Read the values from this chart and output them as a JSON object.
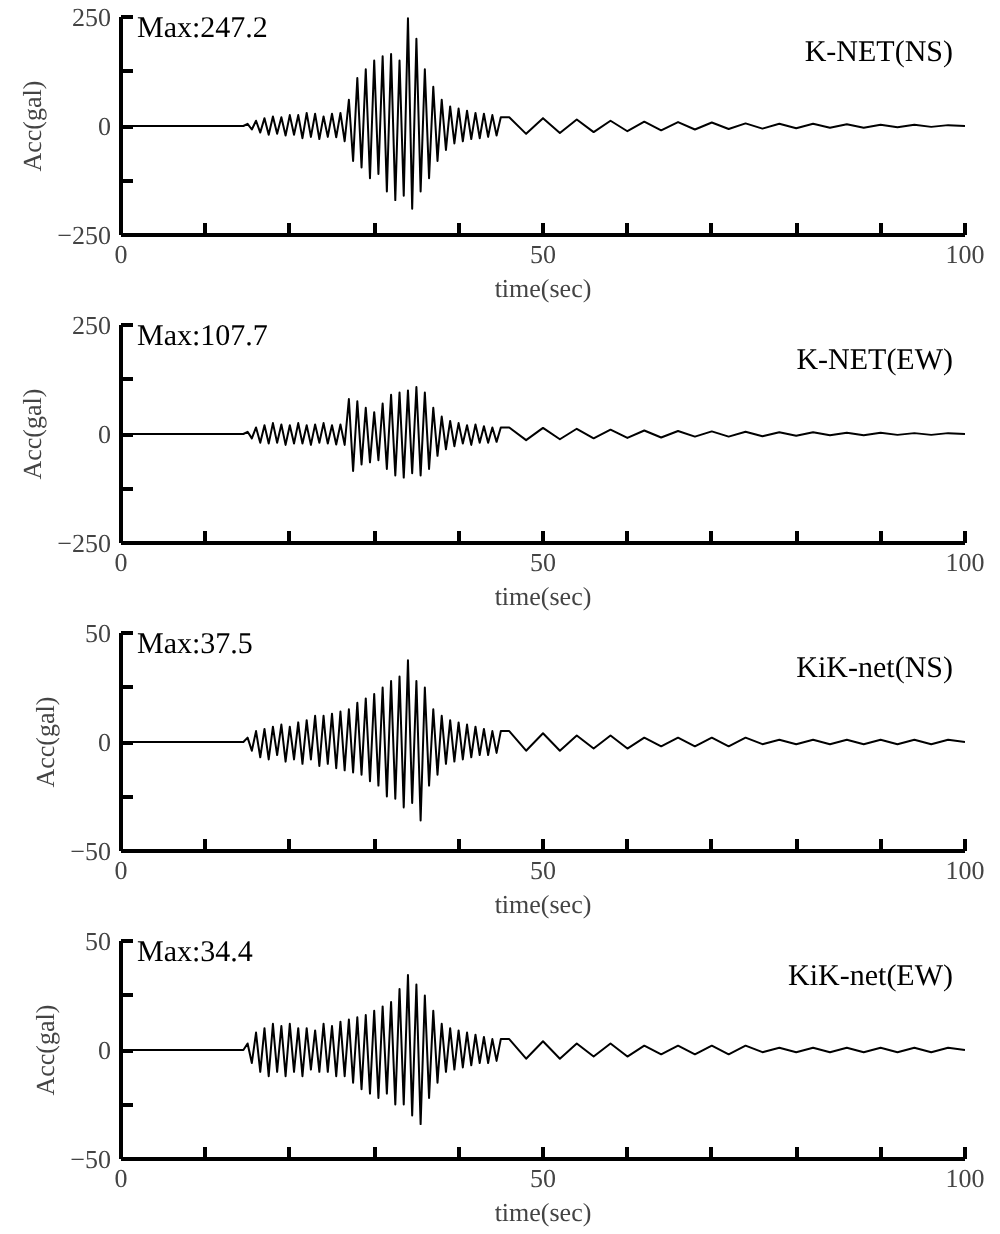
{
  "chart_data": [
    {
      "type": "line",
      "xlabel": "time(sec)",
      "ylabel": "Acc(gal)",
      "annotations": [
        "Max:247.2",
        "K-NET(NS)"
      ],
      "color": "#000000",
      "xlim": [
        0,
        100
      ],
      "ylim": [
        -250,
        250
      ],
      "xticks": [
        0,
        {
          "value": 10,
          "label": null
        },
        {
          "value": 20,
          "label": null
        },
        {
          "value": 30,
          "label": null
        },
        {
          "value": 40,
          "label": null
        },
        50,
        {
          "value": 60,
          "label": null
        },
        {
          "value": 70,
          "label": null
        },
        {
          "value": 80,
          "label": null
        },
        {
          "value": 90,
          "label": null
        },
        100
      ],
      "yticks": [
        -250,
        {
          "value": -125,
          "label": null
        },
        0,
        {
          "value": 125,
          "label": null
        },
        250
      ],
      "x": [
        0,
        14.5,
        15,
        15.5,
        16,
        16.5,
        17,
        17.5,
        18,
        18.5,
        19,
        19.5,
        20,
        20.5,
        21,
        21.5,
        22,
        22.5,
        23,
        23.5,
        24,
        24.5,
        25,
        25.5,
        26,
        26.5,
        27,
        27.5,
        28,
        28.5,
        29,
        29.5,
        30,
        30.5,
        31,
        31.5,
        32,
        32.5,
        33,
        33.5,
        34,
        34.5,
        35,
        35.5,
        36,
        36.5,
        37,
        37.5,
        38,
        38.5,
        39,
        39.5,
        40,
        40.5,
        41,
        41.5,
        42,
        42.5,
        43,
        43.5,
        44,
        44.5,
        45,
        46,
        48,
        50,
        52,
        54,
        56,
        58,
        60,
        62,
        64,
        66,
        68,
        70,
        72,
        74,
        76,
        78,
        80,
        82,
        84,
        86,
        88,
        90,
        92,
        94,
        96,
        98,
        100
      ],
      "values": [
        0,
        0,
        5,
        -8,
        12,
        -15,
        18,
        -20,
        22,
        -18,
        20,
        -22,
        25,
        -20,
        25,
        -28,
        30,
        -25,
        28,
        -30,
        22,
        -25,
        28,
        -26,
        30,
        -35,
        60,
        -80,
        110,
        -95,
        130,
        -120,
        150,
        -110,
        160,
        -150,
        165,
        -170,
        150,
        -160,
        247.2,
        -190,
        200,
        -150,
        130,
        -120,
        90,
        -80,
        60,
        -55,
        45,
        -40,
        40,
        -35,
        35,
        -30,
        30,
        -28,
        28,
        -25,
        25,
        -22,
        20,
        20,
        -18,
        18,
        -16,
        15,
        -14,
        12,
        -12,
        10,
        -10,
        9,
        -8,
        8,
        -7,
        6,
        -6,
        5,
        -5,
        5,
        -4,
        4,
        -4,
        3,
        -3,
        3,
        -2,
        2,
        0
      ]
    },
    {
      "type": "line",
      "xlabel": "time(sec)",
      "ylabel": "Acc(gal)",
      "annotations": [
        "Max:107.7",
        "K-NET(EW)"
      ],
      "color": "#000000",
      "xlim": [
        0,
        100
      ],
      "ylim": [
        -250,
        250
      ],
      "xticks": [
        0,
        {
          "value": 10,
          "label": null
        },
        {
          "value": 20,
          "label": null
        },
        {
          "value": 30,
          "label": null
        },
        {
          "value": 40,
          "label": null
        },
        50,
        {
          "value": 60,
          "label": null
        },
        {
          "value": 70,
          "label": null
        },
        {
          "value": 80,
          "label": null
        },
        {
          "value": 90,
          "label": null
        },
        100
      ],
      "yticks": [
        -250,
        {
          "value": -125,
          "label": null
        },
        0,
        {
          "value": 125,
          "label": null
        },
        250
      ],
      "x": [
        0,
        14.5,
        15,
        15.5,
        16,
        16.5,
        17,
        17.5,
        18,
        18.5,
        19,
        19.5,
        20,
        20.5,
        21,
        21.5,
        22,
        22.5,
        23,
        23.5,
        24,
        24.5,
        25,
        25.5,
        26,
        26.5,
        27,
        27.5,
        28,
        28.5,
        29,
        29.5,
        30,
        30.5,
        31,
        31.5,
        32,
        32.5,
        33,
        33.5,
        34,
        34.5,
        35,
        35.5,
        36,
        36.5,
        37,
        37.5,
        38,
        38.5,
        39,
        39.5,
        40,
        40.5,
        41,
        41.5,
        42,
        42.5,
        43,
        43.5,
        44,
        44.5,
        45,
        46,
        48,
        50,
        52,
        54,
        56,
        58,
        60,
        62,
        64,
        66,
        68,
        70,
        72,
        74,
        76,
        78,
        80,
        82,
        84,
        86,
        88,
        90,
        92,
        94,
        96,
        98,
        100
      ],
      "values": [
        0,
        0,
        5,
        -10,
        15,
        -20,
        20,
        -22,
        25,
        -20,
        22,
        -25,
        20,
        -22,
        25,
        -22,
        20,
        -25,
        22,
        -20,
        25,
        -22,
        20,
        -24,
        22,
        -25,
        80,
        -85,
        75,
        -70,
        60,
        -65,
        50,
        -60,
        70,
        -80,
        90,
        -95,
        95,
        -100,
        100,
        -90,
        107.7,
        -95,
        95,
        -80,
        60,
        -50,
        40,
        -35,
        30,
        -28,
        25,
        -22,
        20,
        -25,
        22,
        -20,
        18,
        -20,
        15,
        -18,
        15,
        15,
        -14,
        14,
        -12,
        12,
        -10,
        10,
        -9,
        8,
        -8,
        7,
        -6,
        6,
        -6,
        5,
        -5,
        4,
        -4,
        4,
        -3,
        3,
        -3,
        3,
        -2,
        2,
        -2,
        2,
        0
      ]
    },
    {
      "type": "line",
      "xlabel": "time(sec)",
      "ylabel": "Acc(gal)",
      "annotations": [
        "Max:37.5",
        "KiK-net(NS)"
      ],
      "color": "#000000",
      "xlim": [
        0,
        100
      ],
      "ylim": [
        -50,
        50
      ],
      "xticks": [
        0,
        {
          "value": 10,
          "label": null
        },
        {
          "value": 20,
          "label": null
        },
        {
          "value": 30,
          "label": null
        },
        {
          "value": 40,
          "label": null
        },
        50,
        {
          "value": 60,
          "label": null
        },
        {
          "value": 70,
          "label": null
        },
        {
          "value": 80,
          "label": null
        },
        {
          "value": 90,
          "label": null
        },
        100
      ],
      "yticks": [
        -50,
        {
          "value": -25,
          "label": null
        },
        0,
        {
          "value": 25,
          "label": null
        },
        50
      ],
      "x": [
        0,
        14.5,
        15,
        15.5,
        16,
        16.5,
        17,
        17.5,
        18,
        18.5,
        19,
        19.5,
        20,
        20.5,
        21,
        21.5,
        22,
        22.5,
        23,
        23.5,
        24,
        24.5,
        25,
        25.5,
        26,
        26.5,
        27,
        27.5,
        28,
        28.5,
        29,
        29.5,
        30,
        30.5,
        31,
        31.5,
        32,
        32.5,
        33,
        33.5,
        34,
        34.5,
        35,
        35.5,
        36,
        36.5,
        37,
        37.5,
        38,
        38.5,
        39,
        39.5,
        40,
        40.5,
        41,
        41.5,
        42,
        42.5,
        43,
        43.5,
        44,
        44.5,
        45,
        46,
        48,
        50,
        52,
        54,
        56,
        58,
        60,
        62,
        64,
        66,
        68,
        70,
        72,
        74,
        76,
        78,
        80,
        82,
        84,
        86,
        88,
        90,
        92,
        94,
        96,
        98,
        100
      ],
      "values": [
        0,
        0,
        2,
        -4,
        5,
        -7,
        6,
        -8,
        7,
        -6,
        8,
        -9,
        7,
        -8,
        9,
        -10,
        10,
        -8,
        12,
        -11,
        12,
        -10,
        13,
        -12,
        14,
        -13,
        15,
        -14,
        18,
        -15,
        20,
        -18,
        22,
        -20,
        25,
        -25,
        28,
        -26,
        30,
        -30,
        37.5,
        -28,
        28,
        -36,
        25,
        -20,
        15,
        -15,
        12,
        -10,
        10,
        -9,
        9,
        -8,
        8,
        -7,
        7,
        -6,
        6,
        -6,
        5,
        -5,
        5,
        5,
        -4,
        4,
        -4,
        3,
        -3,
        3,
        -3,
        2,
        -2,
        2,
        -2,
        2,
        -2,
        2,
        -1,
        1,
        -1,
        1,
        -1,
        1,
        -1,
        1,
        -1,
        1,
        -1,
        1,
        0
      ]
    },
    {
      "type": "line",
      "xlabel": "time(sec)",
      "ylabel": "Acc(gal)",
      "annotations": [
        "Max:34.4",
        "KiK-net(EW)"
      ],
      "color": "#000000",
      "xlim": [
        0,
        100
      ],
      "ylim": [
        -50,
        50
      ],
      "xticks": [
        0,
        {
          "value": 10,
          "label": null
        },
        {
          "value": 20,
          "label": null
        },
        {
          "value": 30,
          "label": null
        },
        {
          "value": 40,
          "label": null
        },
        50,
        {
          "value": 60,
          "label": null
        },
        {
          "value": 70,
          "label": null
        },
        {
          "value": 80,
          "label": null
        },
        {
          "value": 90,
          "label": null
        },
        100
      ],
      "yticks": [
        -50,
        {
          "value": -25,
          "label": null
        },
        0,
        {
          "value": 25,
          "label": null
        },
        50
      ],
      "x": [
        0,
        14.5,
        15,
        15.5,
        16,
        16.5,
        17,
        17.5,
        18,
        18.5,
        19,
        19.5,
        20,
        20.5,
        21,
        21.5,
        22,
        22.5,
        23,
        23.5,
        24,
        24.5,
        25,
        25.5,
        26,
        26.5,
        27,
        27.5,
        28,
        28.5,
        29,
        29.5,
        30,
        30.5,
        31,
        31.5,
        32,
        32.5,
        33,
        33.5,
        34,
        34.5,
        35,
        35.5,
        36,
        36.5,
        37,
        37.5,
        38,
        38.5,
        39,
        39.5,
        40,
        40.5,
        41,
        41.5,
        42,
        42.5,
        43,
        43.5,
        44,
        44.5,
        45,
        46,
        48,
        50,
        52,
        54,
        56,
        58,
        60,
        62,
        64,
        66,
        68,
        70,
        72,
        74,
        76,
        78,
        80,
        82,
        84,
        86,
        88,
        90,
        92,
        94,
        96,
        98,
        100
      ],
      "values": [
        0,
        0,
        3,
        -6,
        8,
        -10,
        10,
        -12,
        12,
        -10,
        11,
        -12,
        12,
        -10,
        10,
        -12,
        10,
        -9,
        9,
        -10,
        12,
        -10,
        11,
        -12,
        13,
        -12,
        14,
        -15,
        15,
        -18,
        16,
        -20,
        18,
        -22,
        20,
        -20,
        22,
        -25,
        28,
        -25,
        34.4,
        -30,
        30,
        -34,
        25,
        -22,
        18,
        -15,
        12,
        -10,
        10,
        -9,
        9,
        -8,
        8,
        -7,
        7,
        -6,
        6,
        -6,
        5,
        -5,
        5,
        5,
        -4,
        4,
        -4,
        3,
        -3,
        3,
        -3,
        2,
        -2,
        2,
        -2,
        2,
        -2,
        2,
        -1,
        1,
        -1,
        1,
        -1,
        1,
        -1,
        1,
        -1,
        1,
        -1,
        1,
        0
      ]
    }
  ]
}
